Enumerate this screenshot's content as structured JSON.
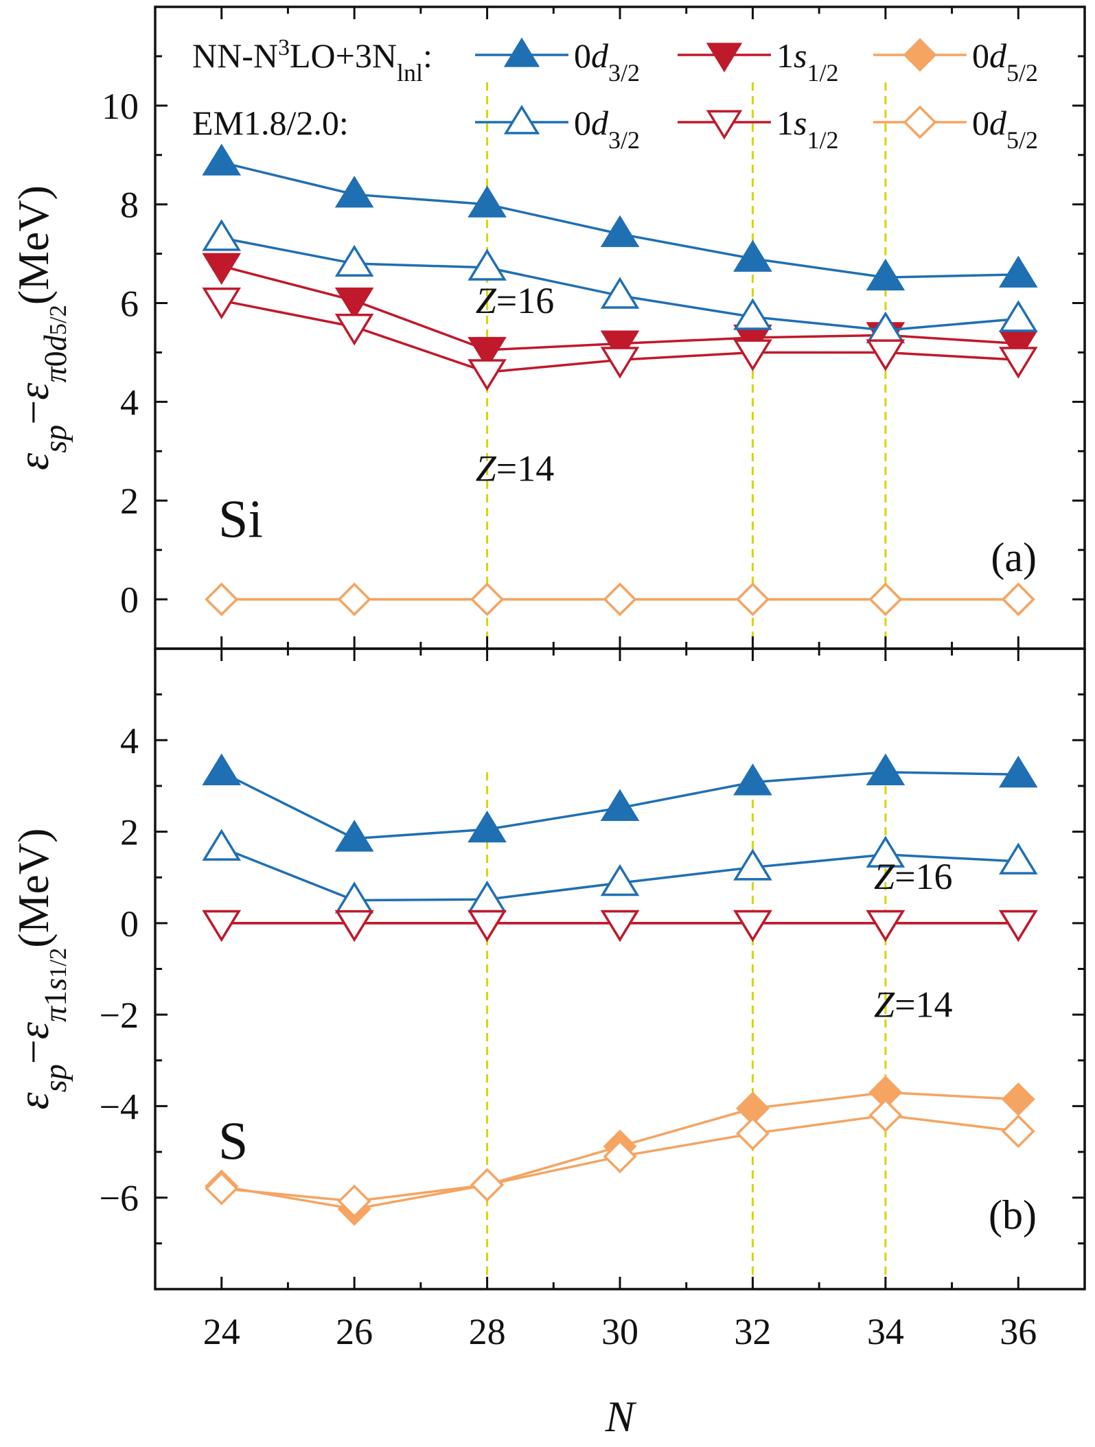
{
  "chart_data": [
    {
      "panel": "(a)",
      "type": "line",
      "element_label": "Si",
      "x": [
        24,
        26,
        28,
        30,
        32,
        34,
        36
      ],
      "xticks": [
        "24",
        "26",
        "28",
        "30",
        "32",
        "34",
        "36"
      ],
      "xlim": [
        23,
        37
      ],
      "ylim": [
        -1,
        12
      ],
      "yticks": [
        0,
        2,
        4,
        6,
        8,
        10
      ],
      "ylabel": "εsp−επ0d5/2(MeV)",
      "vlines": [
        28,
        32,
        34
      ],
      "annotations": [
        {
          "text": "Z=16",
          "x": 28.55,
          "y": 5.8
        },
        {
          "text": "Z=14",
          "x": 28.55,
          "y": 2.4
        }
      ],
      "legend": {
        "groups": [
          {
            "label": "NN-N3LO+3Nlnl:",
            "entries": [
              "0d3/2",
              "1s1/2",
              "0d5/2"
            ]
          },
          {
            "label": "EM1.8/2.0:",
            "entries": [
              "0d3/2",
              "1s1/2",
              "0d5/2"
            ]
          }
        ]
      },
      "series": [
        {
          "name": "0d3/2",
          "group": "NN-N3LO+3Nlnl",
          "marker": "triangle-up",
          "filled": true,
          "color": "#1f6fb3",
          "values": [
            8.85,
            8.2,
            8.0,
            7.4,
            6.9,
            6.52,
            6.58
          ]
        },
        {
          "name": "1s1/2",
          "group": "NN-N3LO+3Nlnl",
          "marker": "triangle-down",
          "filled": true,
          "color": "#c0192b",
          "values": [
            6.75,
            6.05,
            5.05,
            5.18,
            5.3,
            5.35,
            5.18
          ]
        },
        {
          "name": "0d5/2",
          "group": "NN-N3LO+3Nlnl",
          "marker": "diamond",
          "filled": true,
          "color": "#f5a461",
          "values": [
            0,
            0,
            0,
            0,
            0,
            0,
            0
          ]
        },
        {
          "name": "0d3/2",
          "group": "EM1.8/2.0",
          "marker": "triangle-up",
          "filled": false,
          "color": "#1f6fb3",
          "values": [
            7.32,
            6.8,
            6.72,
            6.15,
            5.72,
            5.45,
            5.68
          ]
        },
        {
          "name": "1s1/2",
          "group": "EM1.8/2.0",
          "marker": "triangle-down",
          "filled": false,
          "color": "#c0192b",
          "values": [
            6.05,
            5.52,
            4.6,
            4.85,
            5.0,
            5.0,
            4.85
          ]
        },
        {
          "name": "0d5/2",
          "group": "EM1.8/2.0",
          "marker": "diamond",
          "filled": false,
          "color": "#f5a461",
          "values": [
            0,
            0,
            0,
            0,
            0,
            0,
            0
          ]
        }
      ]
    },
    {
      "panel": "(b)",
      "type": "line",
      "element_label": "S",
      "x": [
        24,
        26,
        28,
        30,
        32,
        34,
        36
      ],
      "xticks": [
        "24",
        "26",
        "28",
        "30",
        "32",
        "34",
        "36"
      ],
      "xlim": [
        23,
        37
      ],
      "xlabel": "N",
      "ylim": [
        -8,
        6
      ],
      "yticks": [
        -6,
        -4,
        -2,
        0,
        2,
        4
      ],
      "ylabel": "εsp−επ1s1/2(MeV)",
      "vlines": [
        28,
        32,
        34
      ],
      "annotations": [
        {
          "text": "Z=16",
          "x": 34.55,
          "y": 0.75
        },
        {
          "text": "Z=14",
          "x": 34.55,
          "y": -2.05
        }
      ],
      "series": [
        {
          "name": "0d3/2",
          "group": "NN-N3LO+3Nlnl",
          "marker": "triangle-up",
          "filled": true,
          "color": "#1f6fb3",
          "values": [
            3.3,
            1.85,
            2.05,
            2.52,
            3.08,
            3.3,
            3.25
          ]
        },
        {
          "name": "1s1/2",
          "group": "NN-N3LO+3Nlnl",
          "marker": "triangle-down",
          "filled": true,
          "color": "#c0192b",
          "values": [
            0,
            0,
            0,
            0,
            0,
            0,
            0
          ]
        },
        {
          "name": "0d5/2",
          "group": "NN-N3LO+3Nlnl",
          "marker": "diamond",
          "filled": true,
          "color": "#f5a461",
          "values": [
            -5.75,
            -6.25,
            -5.72,
            -4.88,
            -4.05,
            -3.7,
            -3.85
          ]
        },
        {
          "name": "0d3/2",
          "group": "EM1.8/2.0",
          "marker": "triangle-up",
          "filled": false,
          "color": "#1f6fb3",
          "values": [
            1.65,
            0.5,
            0.52,
            0.88,
            1.22,
            1.5,
            1.35
          ]
        },
        {
          "name": "1s1/2",
          "group": "EM1.8/2.0",
          "marker": "triangle-down",
          "filled": false,
          "color": "#c0192b",
          "values": [
            0,
            0,
            0,
            0,
            0,
            0,
            0
          ]
        },
        {
          "name": "0d5/2",
          "group": "EM1.8/2.0",
          "marker": "diamond",
          "filled": false,
          "color": "#f5a461",
          "values": [
            -5.8,
            -6.08,
            -5.72,
            -5.1,
            -4.6,
            -4.2,
            -4.55
          ]
        }
      ]
    }
  ]
}
